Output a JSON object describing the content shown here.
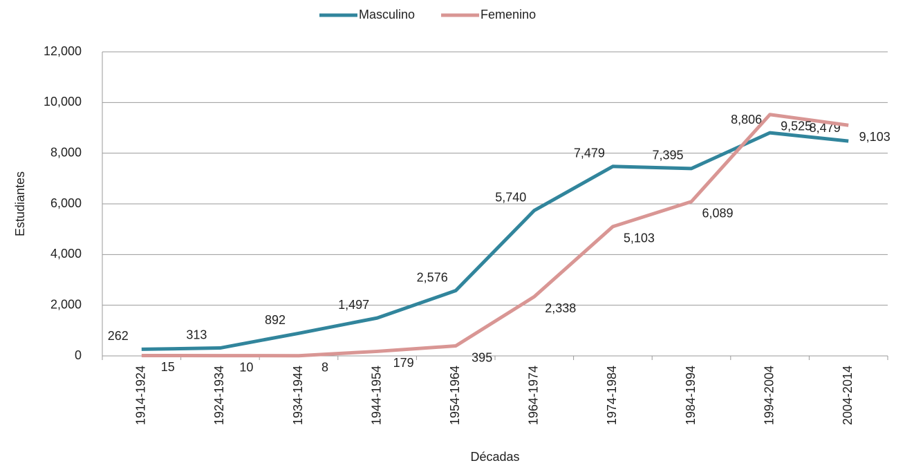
{
  "chart_data": {
    "type": "line",
    "categories": [
      "1914-1924",
      "1924-1934",
      "1934-1944",
      "1944-1954",
      "1954-1964",
      "1964-1974",
      "1974-1984",
      "1984-1994",
      "1994-2004",
      "2004-2014"
    ],
    "series": [
      {
        "name": "Masculino",
        "color": "#31859c",
        "values": [
          262,
          313,
          892,
          1497,
          2576,
          5740,
          7479,
          7395,
          8806,
          8479
        ],
        "value_labels": [
          "262",
          "313",
          "892",
          "1,497",
          "2,576",
          "5,740",
          "7,479",
          "7,395",
          "8,806",
          "8,479"
        ]
      },
      {
        "name": "Femenino",
        "color": "#d99694",
        "values": [
          15,
          10,
          8,
          179,
          395,
          2338,
          5103,
          6089,
          9525,
          9103
        ],
        "value_labels": [
          "15",
          "10",
          "8",
          "179",
          "395",
          "2,338",
          "5,103",
          "6,089",
          "9,525",
          "9,103"
        ]
      }
    ],
    "ylim": [
      0,
      12000
    ],
    "yticks": [
      0,
      {
        "value": 2000,
        "label": "2,000"
      },
      {
        "value": 4000,
        "label": "4,000"
      },
      {
        "value": 6000,
        "label": "6,000"
      },
      {
        "value": 8000,
        "label": "8,000"
      },
      {
        "value": 10000,
        "label": "10,000"
      },
      {
        "value": 12000,
        "label": "12,000"
      }
    ],
    "xlabel": "Décadas",
    "ylabel": "Estudiantes",
    "grid": true,
    "legend": "top"
  }
}
